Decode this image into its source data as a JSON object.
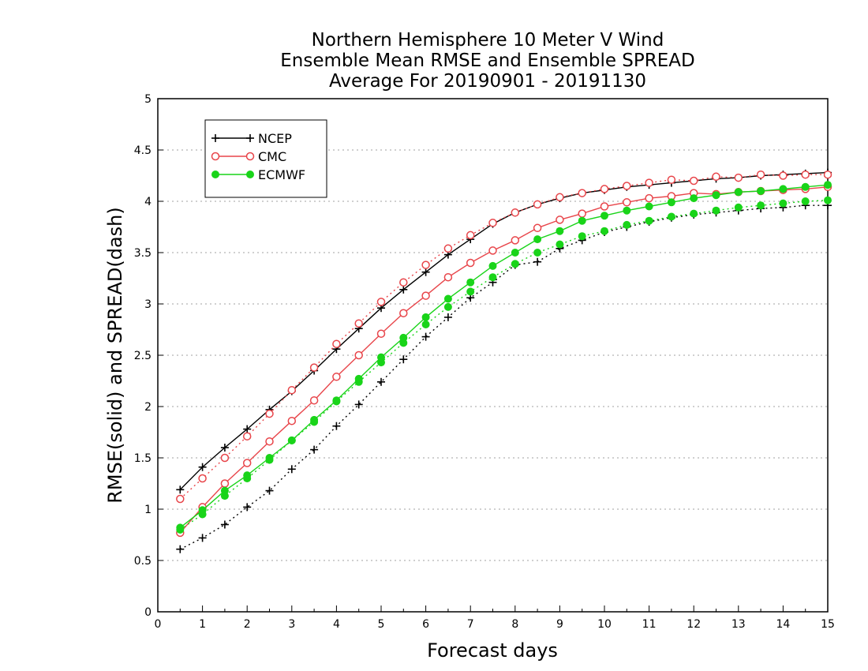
{
  "chart_data": {
    "type": "line",
    "title_lines": [
      "Northern Hemisphere 10 Meter V Wind",
      "Ensemble Mean RMSE and Ensemble SPREAD",
      "Average For 20190901 - 20191130"
    ],
    "xlabel": "Forecast days",
    "ylabel": "RMSE(solid) and SPREAD(dash)",
    "xlim": [
      0,
      15
    ],
    "ylim": [
      0,
      5
    ],
    "x_ticks": [
      "0",
      "1",
      "2",
      "3",
      "4",
      "5",
      "6",
      "7",
      "8",
      "9",
      "10",
      "11",
      "12",
      "13",
      "14",
      "15"
    ],
    "y_ticks": [
      "0",
      "0.5",
      "1",
      "1.5",
      "2",
      "2.5",
      "3",
      "3.5",
      "4",
      "4.5",
      "5"
    ],
    "grid": "horizontal dotted",
    "legend_position": "top-left",
    "x": [
      0.5,
      1,
      1.5,
      2,
      2.5,
      3,
      3.5,
      4,
      4.5,
      5,
      5.5,
      6,
      6.5,
      7,
      7.5,
      8,
      8.5,
      9,
      9.5,
      10,
      10.5,
      11,
      11.5,
      12,
      12.5,
      13,
      13.5,
      14,
      14.5,
      15
    ],
    "series": [
      {
        "name": "NCEP",
        "color": "#000000",
        "marker": "plus",
        "rmse": [
          1.19,
          1.41,
          1.6,
          1.78,
          1.97,
          2.15,
          2.35,
          2.56,
          2.76,
          2.96,
          3.14,
          3.31,
          3.48,
          3.63,
          3.78,
          3.89,
          3.97,
          4.03,
          4.08,
          4.11,
          4.14,
          4.16,
          4.18,
          4.2,
          4.22,
          4.23,
          4.25,
          4.26,
          4.27,
          4.28
        ],
        "spread": [
          0.61,
          0.72,
          0.85,
          1.02,
          1.18,
          1.39,
          1.58,
          1.81,
          2.02,
          2.24,
          2.46,
          2.68,
          2.87,
          3.06,
          3.21,
          3.38,
          3.41,
          3.54,
          3.62,
          3.7,
          3.75,
          3.8,
          3.84,
          3.87,
          3.89,
          3.91,
          3.93,
          3.94,
          3.96,
          3.96
        ]
      },
      {
        "name": "CMC",
        "color": "#e8454a",
        "marker": "open-circle",
        "rmse": [
          0.77,
          1.02,
          1.25,
          1.45,
          1.66,
          1.86,
          2.06,
          2.29,
          2.5,
          2.71,
          2.91,
          3.08,
          3.26,
          3.4,
          3.52,
          3.62,
          3.74,
          3.82,
          3.88,
          3.95,
          3.99,
          4.03,
          4.05,
          4.08,
          4.07,
          4.09,
          4.1,
          4.11,
          4.12,
          4.14
        ],
        "spread": [
          1.1,
          1.3,
          1.5,
          1.71,
          1.93,
          2.16,
          2.38,
          2.61,
          2.81,
          3.02,
          3.21,
          3.38,
          3.54,
          3.67,
          3.79,
          3.89,
          3.97,
          4.04,
          4.08,
          4.12,
          4.15,
          4.18,
          4.21,
          4.2,
          4.24,
          4.23,
          4.26,
          4.25,
          4.26,
          4.26
        ]
      },
      {
        "name": "ECMWF",
        "color": "#19d419",
        "marker": "filled-circle",
        "rmse": [
          0.82,
          0.99,
          1.18,
          1.33,
          1.5,
          1.67,
          1.87,
          2.06,
          2.27,
          2.48,
          2.67,
          2.87,
          3.05,
          3.21,
          3.37,
          3.5,
          3.63,
          3.71,
          3.81,
          3.86,
          3.91,
          3.95,
          3.99,
          4.03,
          4.06,
          4.09,
          4.1,
          4.12,
          4.14,
          4.16
        ],
        "spread": [
          0.8,
          0.95,
          1.13,
          1.3,
          1.48,
          1.67,
          1.85,
          2.05,
          2.24,
          2.43,
          2.62,
          2.8,
          2.97,
          3.12,
          3.26,
          3.39,
          3.5,
          3.58,
          3.66,
          3.71,
          3.77,
          3.81,
          3.85,
          3.88,
          3.91,
          3.94,
          3.96,
          3.98,
          4.0,
          4.01
        ]
      }
    ]
  }
}
